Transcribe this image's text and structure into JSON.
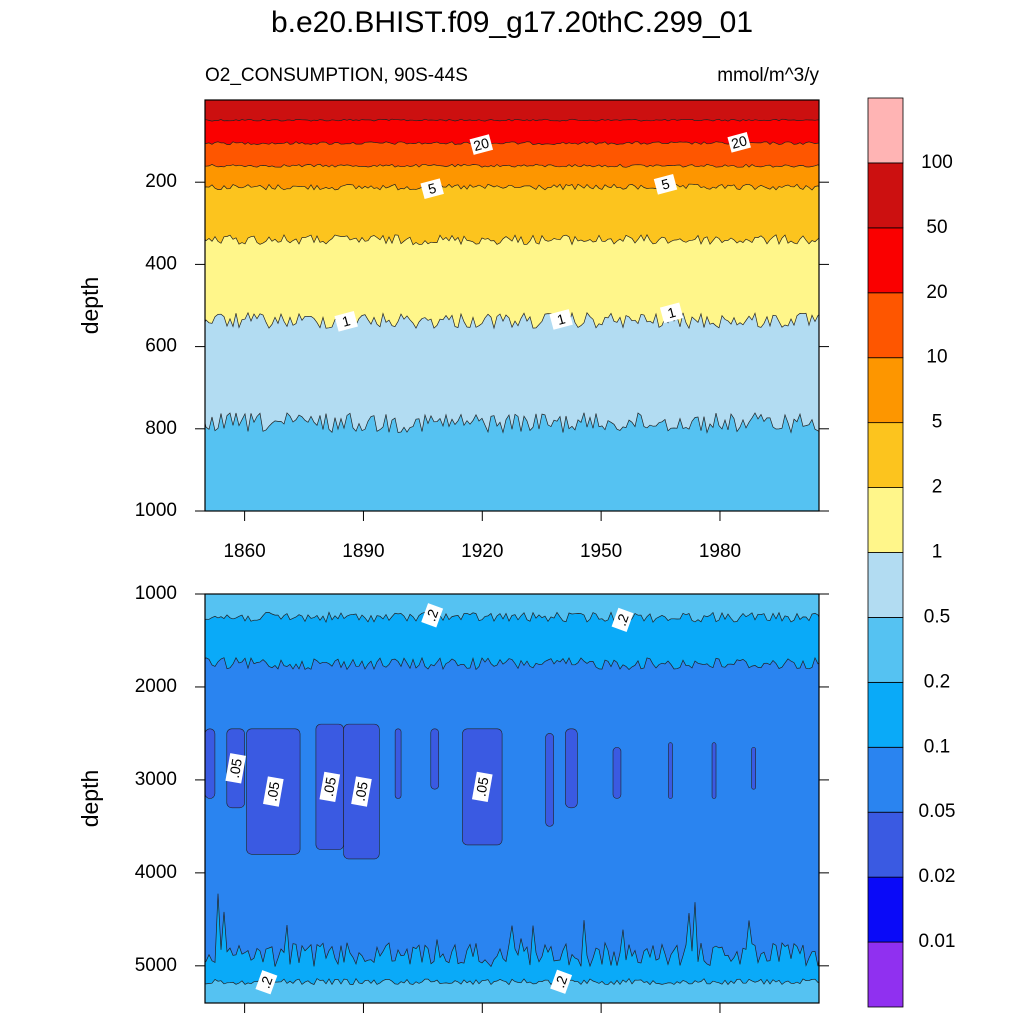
{
  "title": "b.e20.BHIST.f09_g17.20thC.299_01",
  "colorbar": {
    "levels": [
      0.01,
      0.02,
      0.05,
      0.1,
      0.2,
      0.5,
      1,
      2,
      5,
      10,
      20,
      50,
      100
    ],
    "colors": [
      "#9030f0",
      "#0a0af8",
      "#3a5ae2",
      "#2a84f0",
      "#0aaaf8",
      "#55c2f2",
      "#b2dcf2",
      "#fff68a",
      "#fcc41e",
      "#fd9600",
      "#fe5600",
      "#fa0000",
      "#cc1010",
      "#ffb4b4"
    ]
  },
  "chart_data": [
    {
      "type": "contour",
      "left_label": "O2_CONSUMPTION, 90S-44S",
      "right_label": "mmol/m^3/y",
      "ylabel": "depth",
      "xlim": [
        1850,
        2005
      ],
      "xticks": [
        1860,
        1890,
        1920,
        1950,
        1980
      ],
      "xtick_labels": true,
      "ylim": [
        0,
        1000
      ],
      "yticks": [
        200,
        400,
        600,
        800,
        1000
      ],
      "y_reversed": true,
      "contours": {
        "levels": [
          50,
          20,
          10,
          5,
          2,
          1,
          0.5
        ],
        "depths": [
          49,
          105,
          160,
          212,
          340,
          537,
          785
        ],
        "value_labels": [
          null,
          "20",
          null,
          "5",
          null,
          "1",
          null
        ]
      }
    },
    {
      "type": "contour",
      "ylabel": "depth",
      "xlim": [
        1850,
        2005
      ],
      "xticks": [
        1860,
        1890,
        1920,
        1950,
        1980
      ],
      "xtick_labels": false,
      "ylim": [
        1000,
        5400
      ],
      "yticks": [
        1000,
        2000,
        3000,
        4000,
        5000
      ],
      "y_reversed": true,
      "contours": {
        "levels": [
          0.2,
          0.1,
          0.1,
          0.2
        ],
        "depths": [
          1250,
          1750,
          4880,
          5170
        ],
        "value_labels": [
          ".2",
          null,
          null,
          ".2"
        ]
      },
      "patches": {
        "level": 0.05,
        "label": ".05",
        "regions": [
          {
            "x": [
              1850,
              1852.5
            ],
            "depth": [
              2450,
              3200
            ]
          },
          {
            "x": [
              1855.5,
              1860
            ],
            "depth": [
              2450,
              3300
            ]
          },
          {
            "x": [
              1860.5,
              1874
            ],
            "depth": [
              2450,
              3800
            ]
          },
          {
            "x": [
              1878,
              1885
            ],
            "depth": [
              2400,
              3750
            ]
          },
          {
            "x": [
              1885,
              1894
            ],
            "depth": [
              2400,
              3850
            ]
          },
          {
            "x": [
              1898,
              1899.5
            ],
            "depth": [
              2450,
              3200
            ]
          },
          {
            "x": [
              1907,
              1909
            ],
            "depth": [
              2450,
              3100
            ]
          },
          {
            "x": [
              1915,
              1925
            ],
            "depth": [
              2450,
              3700
            ]
          },
          {
            "x": [
              1936,
              1938
            ],
            "depth": [
              2500,
              3500
            ]
          },
          {
            "x": [
              1941,
              1944
            ],
            "depth": [
              2450,
              3300
            ]
          },
          {
            "x": [
              1953,
              1955
            ],
            "depth": [
              2650,
              3200
            ]
          },
          {
            "x": [
              1967,
              1968
            ],
            "depth": [
              2600,
              3200
            ]
          },
          {
            "x": [
              1978,
              1979
            ],
            "depth": [
              2600,
              3200
            ]
          },
          {
            "x": [
              1988,
              1989
            ],
            "depth": [
              2650,
              3100
            ]
          }
        ]
      }
    }
  ]
}
